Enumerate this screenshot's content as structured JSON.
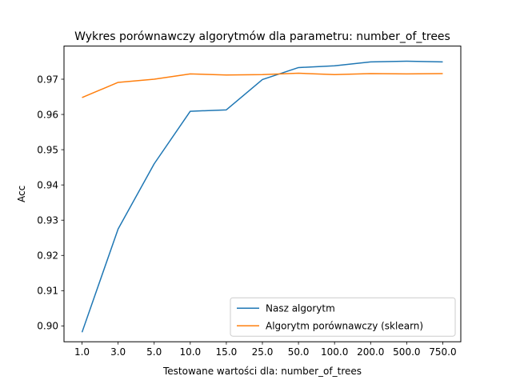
{
  "chart_data": {
    "type": "line",
    "title": "Wykres porównawczy algorytmów dla parametru: number_of_trees",
    "xlabel": "Testowane wartości dla: number_of_trees",
    "ylabel": "Acc",
    "categories": [
      "1.0",
      "3.0",
      "5.0",
      "10.0",
      "15.0",
      "25.0",
      "50.0",
      "100.0",
      "200.0",
      "500.0",
      "750.0"
    ],
    "ylim": [
      0.8955,
      0.9794
    ],
    "yticks": [
      0.9,
      0.91,
      0.92,
      0.93,
      0.94,
      0.95,
      0.96,
      0.97
    ],
    "ytick_labels": [
      "0.90",
      "0.91",
      "0.92",
      "0.93",
      "0.94",
      "0.95",
      "0.96",
      "0.97"
    ],
    "grid": false,
    "legend_position": "lower-right",
    "series": [
      {
        "name": "Nasz algorytm",
        "color": "#1f77b4",
        "values": [
          0.8982,
          0.9275,
          0.946,
          0.9609,
          0.9613,
          0.9699,
          0.9733,
          0.9738,
          0.9749,
          0.9751,
          0.9749
        ]
      },
      {
        "name": "Algorytm porównawczy (sklearn)",
        "color": "#ff7f0e",
        "values": [
          0.9648,
          0.9691,
          0.97,
          0.9715,
          0.9712,
          0.9713,
          0.9717,
          0.9713,
          0.9716,
          0.9715,
          0.9716
        ]
      }
    ]
  }
}
